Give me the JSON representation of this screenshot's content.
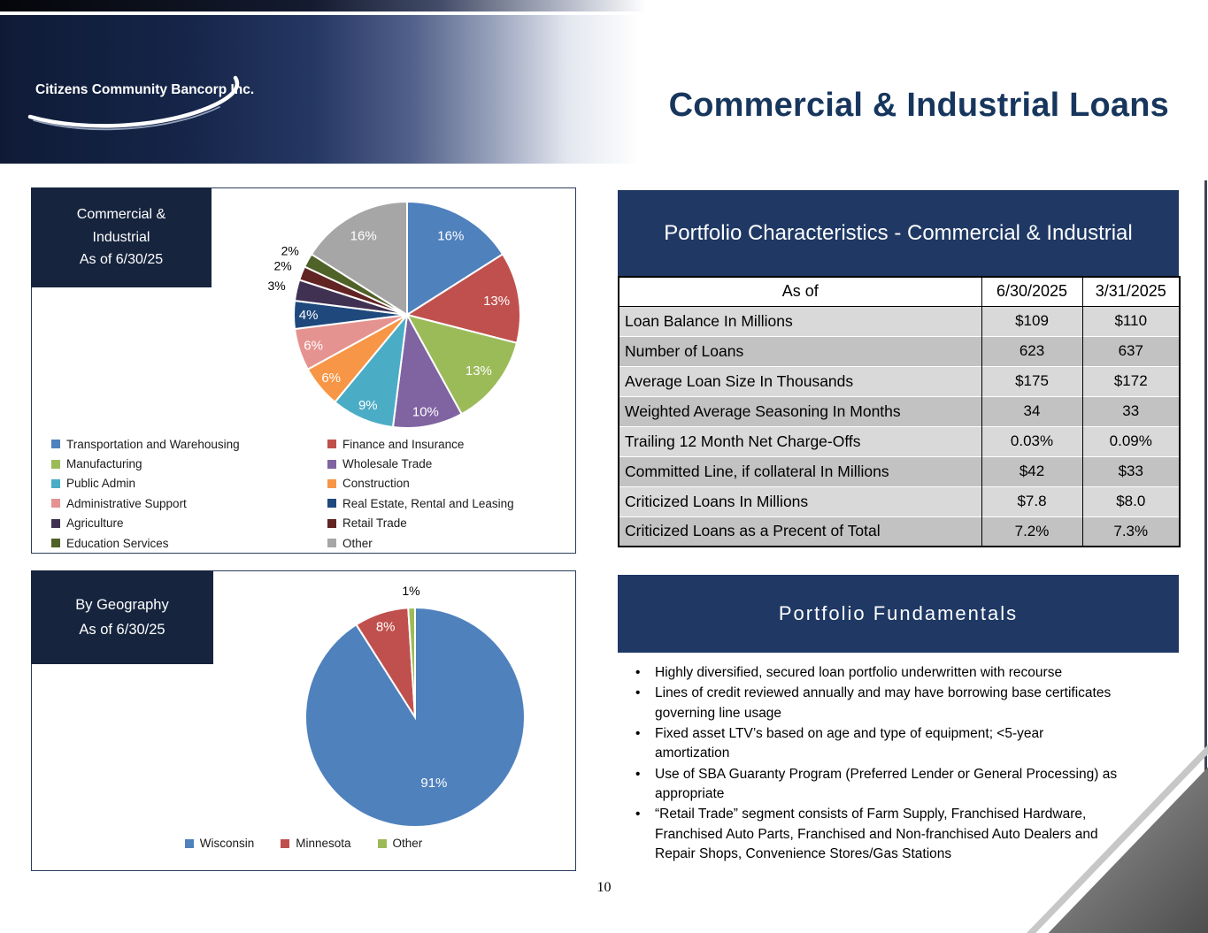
{
  "header": {
    "logo_text": "Citizens Community Bancorp Inc.",
    "title": "Commercial & Industrial Loans"
  },
  "industry_panel": {
    "label_lines": [
      "Commercial &",
      "Industrial",
      "As of 6/30/25"
    ]
  },
  "geography_panel": {
    "label_lines": [
      "By Geography",
      "As of 6/30/25"
    ]
  },
  "characteristics": {
    "title": "Portfolio Characteristics - Commercial & Industrial",
    "columns": [
      "As of",
      "6/30/2025",
      "3/31/2025"
    ],
    "rows": [
      [
        "Loan Balance In Millions",
        "$109",
        "$110"
      ],
      [
        "Number of Loans",
        "623",
        "637"
      ],
      [
        "Average Loan Size In Thousands",
        "$175",
        "$172"
      ],
      [
        "Weighted Average Seasoning In Months",
        "34",
        "33"
      ],
      [
        "Trailing 12 Month Net Charge-Offs",
        "0.03%",
        "0.09%"
      ],
      [
        "Committed Line, if collateral In Millions",
        "$42",
        "$33"
      ],
      [
        "Criticized Loans In Millions",
        "$7.8",
        "$8.0"
      ],
      [
        "Criticized Loans as a Precent of Total",
        "7.2%",
        "7.3%"
      ]
    ]
  },
  "fundamentals": {
    "title": "Portfolio Fundamentals",
    "bullets": [
      "Highly diversified, secured loan portfolio underwritten with recourse",
      "Lines of credit reviewed annually and may have borrowing base certificates governing line usage",
      "Fixed asset LTV’s based on age and type of equipment; <5-year amortization",
      "Use of SBA Guaranty Program (Preferred Lender or General Processing) as appropriate",
      "“Retail Trade” segment consists of Farm Supply, Franchised Hardware, Franchised Auto Parts, Franchised and Non-franchised Auto Dealers and Repair Shops, Convenience Stores/Gas Stations"
    ]
  },
  "footer": {
    "page_number": "10"
  },
  "theme": {
    "navy_band": "#1F3864",
    "label_box_navy": "#16243E",
    "title_color": "#17365D"
  },
  "chart_data": [
    {
      "type": "pie",
      "title": "Commercial & Industrial As of 6/30/25",
      "labels": [
        "Transportation and Warehousing",
        "Finance and Insurance",
        "Manufacturing",
        "Wholesale Trade",
        "Public Admin",
        "Construction",
        "Administrative Support",
        "Real Estate, Rental and Leasing",
        "Agriculture",
        "Retail Trade",
        "Education Services",
        "Other"
      ],
      "values": [
        16,
        13,
        13,
        10,
        9,
        6,
        6,
        4,
        3,
        2,
        2,
        16
      ],
      "colors": [
        "#4F81BD",
        "#C0504D",
        "#9BBB59",
        "#8064A2",
        "#4BACC6",
        "#F79646",
        "#E59390",
        "#1F497D",
        "#403152",
        "#622423",
        "#4F6228",
        "#A6A6A6"
      ],
      "legend_position": "bottom",
      "value_format": "percent"
    },
    {
      "type": "pie",
      "title": "By Geography As of 6/30/25",
      "labels": [
        "Wisconsin",
        "Minnesota",
        "Other"
      ],
      "values": [
        91,
        8,
        1
      ],
      "colors": [
        "#4F81BD",
        "#C0504D",
        "#9BBB59"
      ],
      "legend_position": "bottom",
      "value_format": "percent"
    }
  ]
}
